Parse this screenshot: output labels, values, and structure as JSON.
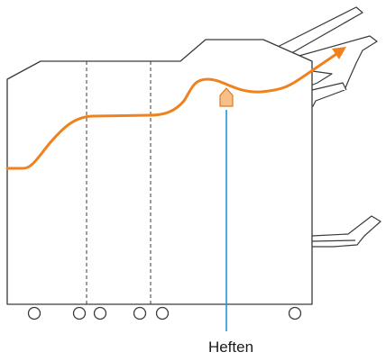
{
  "callout": {
    "label": "Heften"
  },
  "colors": {
    "paper_path": "#f0821e",
    "staple_marker_fill": "#f7c08a",
    "staple_marker_stroke": "#e07a1a",
    "callout_line": "#1a9ad6",
    "outline": "#3a3a3a"
  },
  "icons": {
    "marker": "staple-position-icon",
    "arrow": "paper-exit-arrow-icon"
  }
}
